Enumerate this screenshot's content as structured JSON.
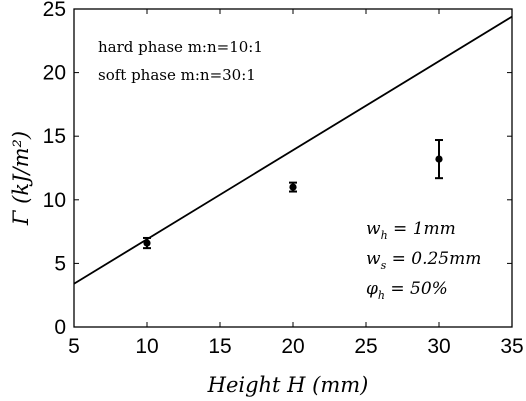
{
  "chart_data": {
    "type": "scatter",
    "title": "",
    "xlabel": "Height H (mm)",
    "ylabel": "Γ (kJ/m²)",
    "xlim": [
      5,
      35
    ],
    "ylim": [
      0,
      25
    ],
    "xticks": [
      5,
      10,
      15,
      20,
      25,
      30,
      35
    ],
    "yticks": [
      0,
      5,
      10,
      15,
      20,
      25
    ],
    "grid": false,
    "series": [
      {
        "kind": "errorbar-points",
        "x": [
          10,
          20,
          30
        ],
        "y": [
          6.6,
          11.0,
          13.2
        ],
        "err": [
          0.4,
          0.35,
          1.5
        ]
      },
      {
        "kind": "line",
        "x": [
          5,
          35
        ],
        "y": [
          3.4,
          24.4
        ]
      }
    ],
    "annotations": {
      "hard_phase": "hard phase m:n=10:1",
      "soft_phase": "soft phase m:n=30:1",
      "wh_sym": "w",
      "wh_sub": "h",
      "wh_val": " = 1mm",
      "ws_sym": "w",
      "ws_sub": "s",
      "ws_val": " = 0.25mm",
      "phi_sym": "φ",
      "phi_sub": "h",
      "phi_val": " = 50%"
    },
    "colors": {
      "line": "#000000",
      "points": "#000000"
    }
  }
}
